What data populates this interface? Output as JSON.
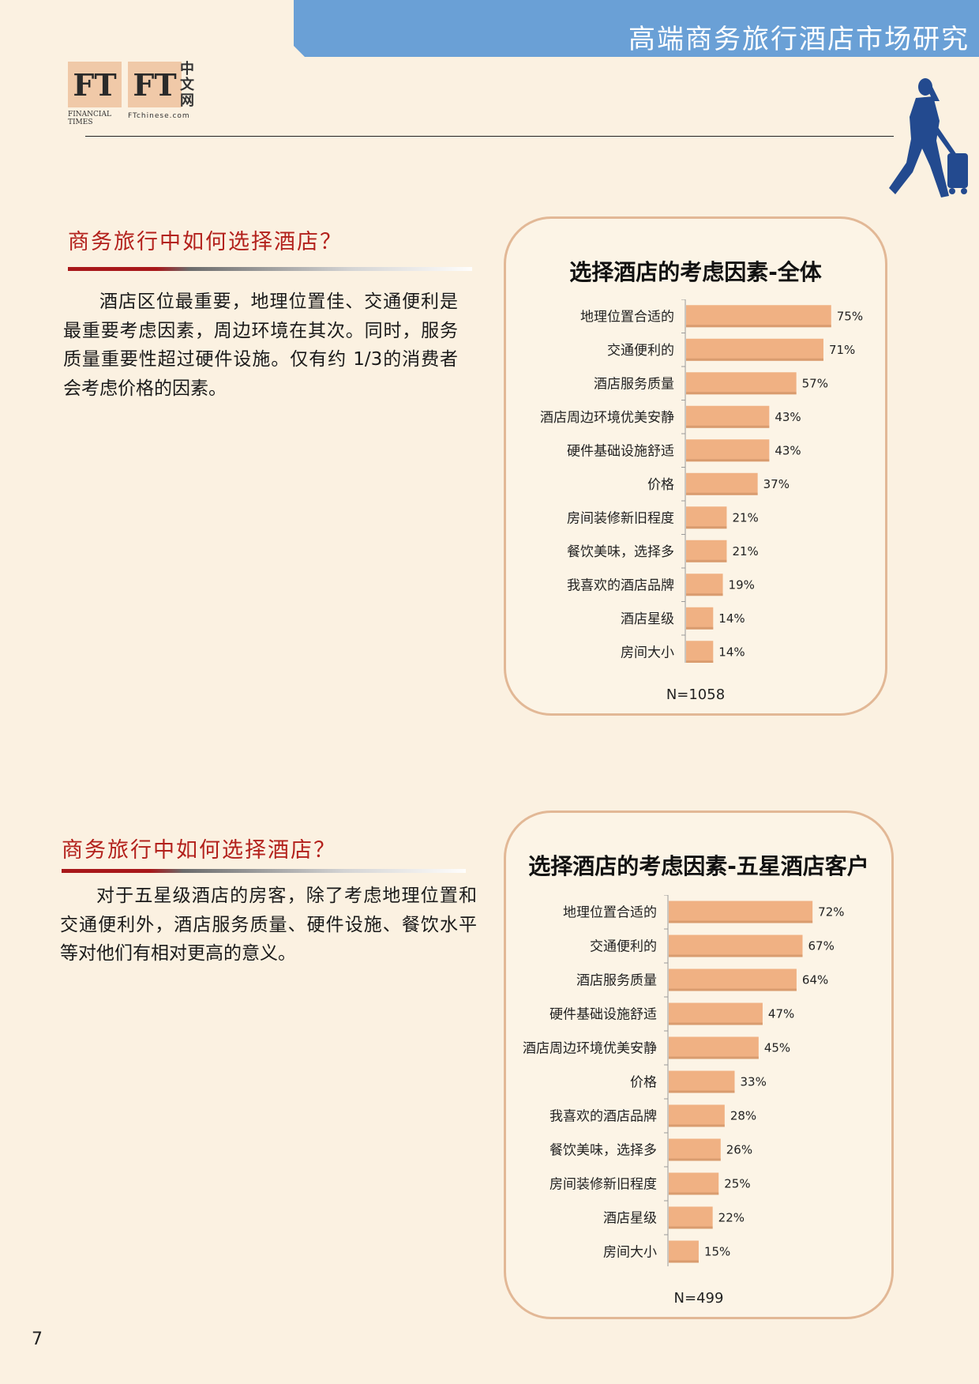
{
  "header": {
    "title": "高端商务旅行酒店市场研究"
  },
  "logo": {
    "ft_left": "FT",
    "ft_left_sub": "FINANCIAL TIMES",
    "ft_right": "FT",
    "ft_right_cn": "中文网",
    "ft_right_sub": "FTchinese.com"
  },
  "section1": {
    "heading": "商务旅行中如何选择酒店？",
    "paragraph": "酒店区位最重要，地理位置佳、交通便利是最重要考虑因素，周边环境在其次。同时，服务质量重要性超过硬件设施。仅有约 1/3的消费者会考虑价格的因素。"
  },
  "section2": {
    "heading": "商务旅行中如何选择酒店？",
    "paragraph": "对于五星级酒店的房客，除了考虑地理位置和交通便利外，酒店服务质量、硬件设施、餐饮水平等对他们有相对更高的意义。"
  },
  "page_number": "7",
  "colors": {
    "bar": "#f0b183",
    "banner": "#6aa0d6",
    "heading": "#b3211c",
    "panel_border": "#e2b896"
  },
  "chart_data": [
    {
      "type": "bar",
      "orientation": "horizontal",
      "title": "选择酒店的考虑因素-全体",
      "categories": [
        "地理位置合适的",
        "交通便利的",
        "酒店服务质量",
        "酒店周边环境优美安静",
        "硬件基础设施舒适",
        "价格",
        "房间装修新旧程度",
        "餐饮美味，选择多",
        "我喜欢的酒店品牌",
        "酒店星级",
        "房间大小"
      ],
      "values": [
        75,
        71,
        57,
        43,
        43,
        37,
        21,
        21,
        19,
        14,
        14
      ],
      "value_labels": [
        "75%",
        "71%",
        "57%",
        "43%",
        "43%",
        "37%",
        "21%",
        "21%",
        "19%",
        "14%",
        "14%"
      ],
      "note": "N=1058",
      "xlim": [
        0,
        100
      ],
      "grid": false,
      "legend": "none"
    },
    {
      "type": "bar",
      "orientation": "horizontal",
      "title": "选择酒店的考虑因素-五星酒店客户",
      "categories": [
        "地理位置合适的",
        "交通便利的",
        "酒店服务质量",
        "硬件基础设施舒适",
        "酒店周边环境优美安静",
        "价格",
        "我喜欢的酒店品牌",
        "餐饮美味，选择多",
        "房间装修新旧程度",
        "酒店星级",
        "房间大小"
      ],
      "values": [
        72,
        67,
        64,
        47,
        45,
        33,
        28,
        26,
        25,
        22,
        15
      ],
      "value_labels": [
        "72%",
        "67%",
        "64%",
        "47%",
        "45%",
        "33%",
        "28%",
        "26%",
        "25%",
        "22%",
        "15%"
      ],
      "note": "N=499",
      "xlim": [
        0,
        100
      ],
      "grid": false,
      "legend": "none"
    }
  ]
}
